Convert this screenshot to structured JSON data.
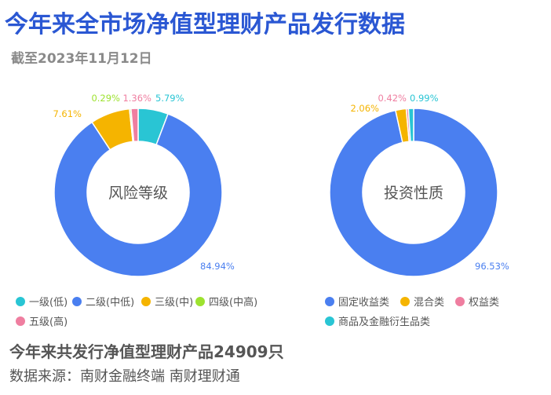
{
  "title": "今年来全市场净值型理财产品发行数据",
  "subtitle": "截至2023年11月12日",
  "total_text": "今年来共发行净值型理财产品24909只",
  "source_text": "数据来源：南财金融终端 南财理财通",
  "chart_data": [
    {
      "type": "pie",
      "center_label": "风险等级",
      "categories": [
        "一级(低)",
        "二级(中低)",
        "三级(中)",
        "四级(中高)",
        "五级(高)"
      ],
      "values": [
        5.79,
        84.94,
        7.61,
        0.29,
        1.36
      ],
      "value_labels": [
        "5.79%",
        "84.94%",
        "7.61%",
        "0.29%",
        "1.36%"
      ],
      "colors": [
        "#29c5d4",
        "#4a7ff0",
        "#f5b400",
        "#9de22f",
        "#ef7ea0"
      ]
    },
    {
      "type": "pie",
      "center_label": "投资性质",
      "categories": [
        "固定收益类",
        "混合类",
        "权益类",
        "商品及金融衍生品类"
      ],
      "values": [
        96.53,
        2.06,
        0.42,
        0.99
      ],
      "value_labels": [
        "96.53%",
        "2.06%",
        "0.42%",
        "0.99%"
      ],
      "colors": [
        "#4a7ff0",
        "#f5b400",
        "#ef7ea0",
        "#29c5d4"
      ]
    }
  ]
}
